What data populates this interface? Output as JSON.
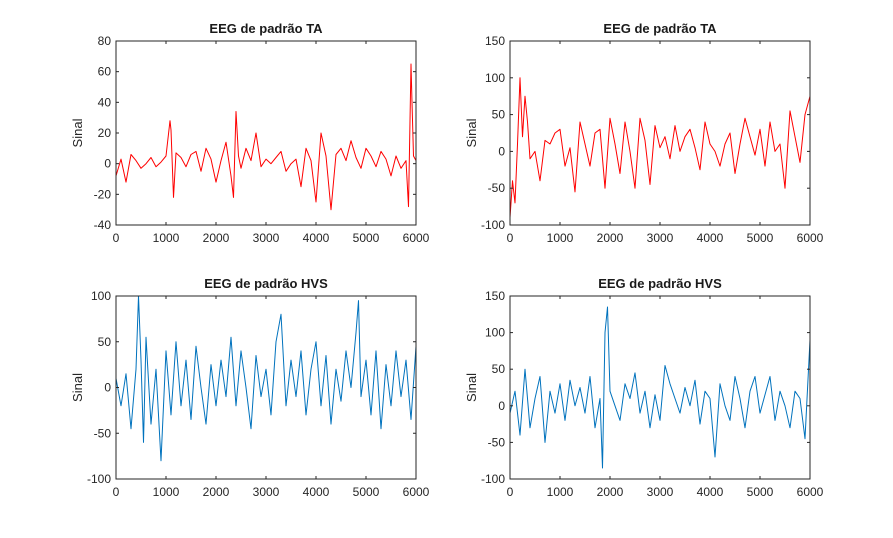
{
  "figure": {
    "background": "#ffffff"
  },
  "chart_data": [
    {
      "type": "line",
      "title": "EEG de padrão TA",
      "xlabel": "",
      "ylabel": "Sinal",
      "xlim": [
        0,
        6000
      ],
      "ylim": [
        -40,
        80
      ],
      "xticks": [
        0,
        1000,
        2000,
        3000,
        4000,
        5000,
        6000
      ],
      "yticks": [
        -40,
        -20,
        0,
        20,
        40,
        60,
        80
      ],
      "grid": false,
      "series": [
        {
          "color": "#ff0000",
          "x": [
            0,
            100,
            200,
            300,
            400,
            500,
            600,
            700,
            800,
            900,
            1000,
            1080,
            1100,
            1150,
            1200,
            1300,
            1400,
            1500,
            1600,
            1700,
            1800,
            1900,
            2000,
            2100,
            2200,
            2300,
            2350,
            2400,
            2450,
            2500,
            2600,
            2700,
            2800,
            2900,
            3000,
            3100,
            3200,
            3300,
            3400,
            3500,
            3600,
            3700,
            3800,
            3900,
            4000,
            4100,
            4200,
            4300,
            4400,
            4500,
            4600,
            4700,
            4800,
            4900,
            5000,
            5100,
            5200,
            5300,
            5400,
            5500,
            5600,
            5700,
            5800,
            5850,
            5900,
            5920,
            5950,
            6000
          ],
          "y": [
            -8,
            3,
            -12,
            6,
            2,
            -3,
            0,
            4,
            -2,
            1,
            5,
            28,
            22,
            -22,
            7,
            4,
            -2,
            6,
            8,
            -5,
            10,
            3,
            -12,
            2,
            14,
            -8,
            -22,
            34,
            5,
            -3,
            10,
            2,
            20,
            -2,
            3,
            0,
            4,
            8,
            -5,
            0,
            3,
            -15,
            10,
            2,
            -25,
            20,
            5,
            -30,
            6,
            10,
            2,
            15,
            4,
            -3,
            10,
            5,
            -2,
            8,
            3,
            -8,
            5,
            -3,
            2,
            -28,
            65,
            40,
            5,
            2
          ]
        }
      ]
    },
    {
      "type": "line",
      "title": "EEG de padrão TA",
      "xlabel": "",
      "ylabel": "Sinal",
      "xlim": [
        0,
        6000
      ],
      "ylim": [
        -100,
        150
      ],
      "xticks": [
        0,
        1000,
        2000,
        3000,
        4000,
        5000,
        6000
      ],
      "yticks": [
        -100,
        -50,
        0,
        50,
        100,
        150
      ],
      "grid": false,
      "series": [
        {
          "color": "#ff0000",
          "x": [
            0,
            50,
            100,
            150,
            200,
            250,
            300,
            350,
            400,
            500,
            600,
            700,
            800,
            900,
            1000,
            1100,
            1200,
            1300,
            1400,
            1500,
            1600,
            1700,
            1800,
            1900,
            2000,
            2100,
            2200,
            2300,
            2400,
            2500,
            2600,
            2700,
            2800,
            2900,
            3000,
            3100,
            3200,
            3300,
            3400,
            3500,
            3600,
            3700,
            3800,
            3900,
            4000,
            4100,
            4200,
            4300,
            4400,
            4500,
            4600,
            4700,
            4800,
            4900,
            5000,
            5100,
            5200,
            5300,
            5400,
            5500,
            5600,
            5700,
            5800,
            5900,
            6000
          ],
          "y": [
            -90,
            -40,
            -70,
            10,
            100,
            20,
            75,
            40,
            -10,
            0,
            -40,
            15,
            10,
            25,
            30,
            -20,
            5,
            -55,
            40,
            10,
            -20,
            25,
            30,
            -50,
            45,
            10,
            -30,
            40,
            0,
            -50,
            45,
            15,
            -45,
            35,
            5,
            20,
            -10,
            35,
            0,
            20,
            30,
            5,
            -25,
            40,
            10,
            0,
            -20,
            10,
            25,
            -30,
            10,
            45,
            20,
            -5,
            30,
            -20,
            40,
            0,
            10,
            -50,
            55,
            20,
            -15,
            50,
            75
          ]
        }
      ]
    },
    {
      "type": "line",
      "title": "EEG de padrão HVS",
      "xlabel": "",
      "ylabel": "Sinal",
      "xlim": [
        0,
        6000
      ],
      "ylim": [
        -100,
        100
      ],
      "xticks": [
        0,
        1000,
        2000,
        3000,
        4000,
        5000,
        6000
      ],
      "yticks": [
        -100,
        -50,
        0,
        50,
        100
      ],
      "grid": false,
      "series": [
        {
          "color": "#0072bd",
          "x": [
            0,
            100,
            200,
            300,
            400,
            450,
            500,
            550,
            600,
            700,
            800,
            900,
            1000,
            1100,
            1200,
            1300,
            1400,
            1500,
            1600,
            1700,
            1800,
            1900,
            2000,
            2100,
            2200,
            2300,
            2400,
            2500,
            2600,
            2700,
            2800,
            2900,
            3000,
            3100,
            3200,
            3300,
            3400,
            3500,
            3600,
            3700,
            3800,
            3900,
            4000,
            4100,
            4200,
            4300,
            4400,
            4500,
            4600,
            4700,
            4800,
            4850,
            4900,
            5000,
            5100,
            5200,
            5300,
            5400,
            5500,
            5600,
            5700,
            5800,
            5900,
            6000
          ],
          "y": [
            10,
            -20,
            15,
            -45,
            20,
            100,
            30,
            -60,
            55,
            -40,
            20,
            -80,
            40,
            -30,
            50,
            -20,
            30,
            -35,
            45,
            0,
            -40,
            25,
            -20,
            30,
            -10,
            55,
            -20,
            40,
            0,
            -45,
            35,
            -10,
            20,
            -30,
            50,
            80,
            -20,
            30,
            -10,
            40,
            -30,
            20,
            50,
            -20,
            35,
            -40,
            20,
            -15,
            40,
            0,
            60,
            95,
            -10,
            30,
            -30,
            40,
            -45,
            25,
            -20,
            40,
            -10,
            30,
            -35,
            45
          ]
        }
      ]
    },
    {
      "type": "line",
      "title": "EEG de padrão HVS",
      "xlabel": "",
      "ylabel": "Sinal",
      "xlim": [
        0,
        6000
      ],
      "ylim": [
        -100,
        150
      ],
      "xticks": [
        0,
        1000,
        2000,
        3000,
        4000,
        5000,
        6000
      ],
      "yticks": [
        -100,
        -50,
        0,
        50,
        100,
        150
      ],
      "grid": false,
      "series": [
        {
          "color": "#0072bd",
          "x": [
            0,
            100,
            200,
            300,
            400,
            500,
            600,
            700,
            800,
            900,
            1000,
            1100,
            1200,
            1300,
            1400,
            1500,
            1600,
            1700,
            1800,
            1850,
            1900,
            1950,
            2000,
            2100,
            2200,
            2300,
            2400,
            2500,
            2600,
            2700,
            2800,
            2900,
            3000,
            3100,
            3200,
            3300,
            3400,
            3500,
            3600,
            3700,
            3800,
            3900,
            4000,
            4100,
            4200,
            4300,
            4400,
            4500,
            4600,
            4700,
            4800,
            4900,
            5000,
            5100,
            5200,
            5300,
            5400,
            5500,
            5600,
            5700,
            5800,
            5900,
            6000
          ],
          "y": [
            -10,
            20,
            -40,
            50,
            -30,
            10,
            40,
            -50,
            20,
            -10,
            30,
            -20,
            35,
            0,
            25,
            -10,
            40,
            -30,
            10,
            -85,
            100,
            135,
            20,
            0,
            -20,
            30,
            10,
            45,
            -10,
            20,
            -30,
            15,
            -20,
            55,
            30,
            10,
            -10,
            25,
            0,
            35,
            -25,
            20,
            10,
            -70,
            30,
            0,
            -20,
            40,
            10,
            -30,
            20,
            40,
            -10,
            15,
            40,
            -20,
            20,
            0,
            -30,
            20,
            10,
            -45,
            90
          ]
        }
      ]
    }
  ]
}
